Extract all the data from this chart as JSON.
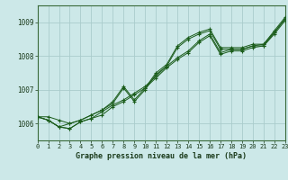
{
  "xlabel": "Graphe pression niveau de la mer (hPa)",
  "ylim": [
    1005.5,
    1009.5
  ],
  "xlim": [
    0,
    23
  ],
  "xticks": [
    0,
    1,
    2,
    3,
    4,
    5,
    6,
    7,
    8,
    9,
    10,
    11,
    12,
    13,
    14,
    15,
    16,
    17,
    18,
    19,
    20,
    21,
    22,
    23
  ],
  "yticks": [
    1006,
    1007,
    1008,
    1009
  ],
  "background_color": "#cce8e8",
  "grid_color": "#aacccc",
  "line_color": "#1a5c1a",
  "series": [
    [
      1006.2,
      1006.2,
      1006.1,
      1006.0,
      1006.1,
      1006.25,
      1006.4,
      1006.6,
      1007.05,
      1006.65,
      1007.0,
      1007.45,
      1007.7,
      1008.25,
      1008.5,
      1008.65,
      1008.75,
      1008.2,
      1008.2,
      1008.2,
      1008.3,
      1008.3,
      1008.7,
      1009.1
    ],
    [
      1006.2,
      1006.1,
      1005.9,
      1005.85,
      1006.05,
      1006.15,
      1006.25,
      1006.5,
      1006.65,
      1006.85,
      1007.05,
      1007.35,
      1007.65,
      1007.9,
      1008.1,
      1008.4,
      1008.6,
      1008.05,
      1008.15,
      1008.15,
      1008.25,
      1008.3,
      1008.65,
      1009.05
    ],
    [
      1006.2,
      1006.1,
      1005.9,
      1005.85,
      1006.05,
      1006.15,
      1006.35,
      1006.55,
      1006.7,
      1006.9,
      1007.1,
      1007.4,
      1007.7,
      1007.95,
      1008.15,
      1008.45,
      1008.65,
      1008.1,
      1008.2,
      1008.2,
      1008.3,
      1008.35,
      1008.7,
      1009.1
    ],
    [
      1006.2,
      1006.1,
      1005.9,
      1006.0,
      1006.1,
      1006.25,
      1006.4,
      1006.65,
      1007.1,
      1006.7,
      1007.05,
      1007.5,
      1007.75,
      1008.3,
      1008.55,
      1008.7,
      1008.8,
      1008.25,
      1008.25,
      1008.25,
      1008.35,
      1008.35,
      1008.75,
      1009.15
    ]
  ]
}
